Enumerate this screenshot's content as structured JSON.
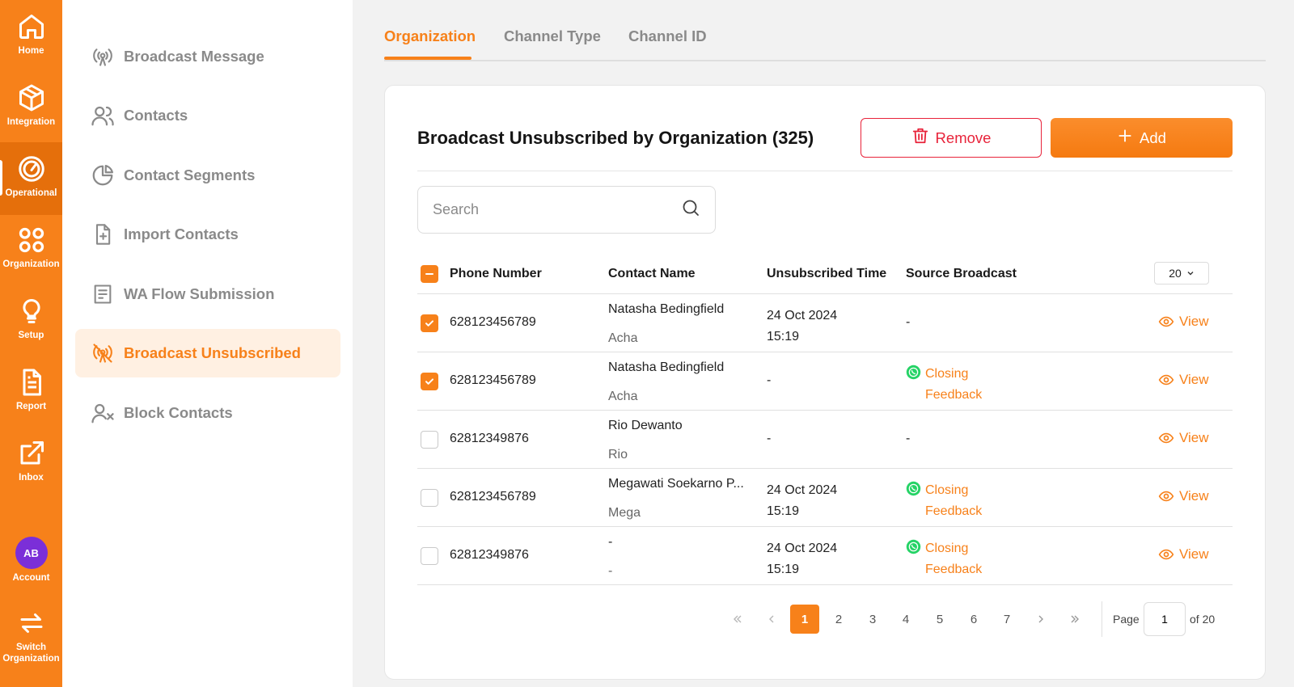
{
  "rail": {
    "items": [
      {
        "label": "Home",
        "icon": "home-icon"
      },
      {
        "label": "Integration",
        "icon": "cube-icon"
      },
      {
        "label": "Operational",
        "icon": "gauge-icon",
        "active": true
      },
      {
        "label": "Organization",
        "icon": "grid-icon"
      },
      {
        "label": "Setup",
        "icon": "bulb-icon"
      },
      {
        "label": "Report",
        "icon": "report-icon"
      },
      {
        "label": "Inbox",
        "icon": "external-link-icon"
      },
      {
        "label": "Account",
        "avatar": "AB"
      },
      {
        "label": "Switch\nOrganization",
        "icon": "switch-icon"
      }
    ]
  },
  "submenu": {
    "items": [
      {
        "label": "Broadcast Message",
        "icon": "broadcast-icon"
      },
      {
        "label": "Contacts",
        "icon": "contacts-icon"
      },
      {
        "label": "Contact Segments",
        "icon": "pie-icon"
      },
      {
        "label": "Import Contacts",
        "icon": "file-plus-icon"
      },
      {
        "label": "WA Flow Submission",
        "icon": "form-icon"
      },
      {
        "label": "Broadcast Unsubscribed",
        "icon": "broadcast-off-icon",
        "active": true
      },
      {
        "label": "Block Contacts",
        "icon": "user-block-icon"
      }
    ]
  },
  "tabs": [
    {
      "label": "Organization",
      "active": true
    },
    {
      "label": "Channel Type"
    },
    {
      "label": "Channel ID"
    }
  ],
  "card": {
    "title": "Broadcast Unsubscribed by Organization (325)",
    "remove_label": "Remove",
    "add_label": "Add",
    "search_placeholder": "Search"
  },
  "table": {
    "columns": [
      "Phone Number",
      "Contact Name",
      "Unsubscribed Time",
      "Source Broadcast"
    ],
    "page_size": "20",
    "view_label": "View",
    "rows": [
      {
        "checked": true,
        "phone": "628123456789",
        "name": "Natasha Bedingfield",
        "nick": "Acha",
        "date": "24 Oct 2024",
        "time": "15:19",
        "source": "-",
        "source_wa": false
      },
      {
        "checked": true,
        "phone": "628123456789",
        "name": "Natasha Bedingfield",
        "nick": "Acha",
        "date": "-",
        "time": "",
        "source_line1": "Closing",
        "source_line2": "Feedback",
        "source_wa": true
      },
      {
        "checked": false,
        "phone": "62812349876",
        "name": "Rio Dewanto",
        "nick": "Rio",
        "date": "-",
        "time": "",
        "source": "-",
        "source_wa": false
      },
      {
        "checked": false,
        "phone": "628123456789",
        "name": "Megawati Soekarno P...",
        "nick": "Mega",
        "date": "24 Oct 2024",
        "time": "15:19",
        "source_line1": "Closing",
        "source_line2": "Feedback",
        "source_wa": true
      },
      {
        "checked": false,
        "phone": "62812349876",
        "name": "-",
        "nick": "-",
        "date": "24 Oct 2024",
        "time": "15:19",
        "source_line1": "Closing",
        "source_line2": "Feedback",
        "source_wa": true
      }
    ]
  },
  "pagination": {
    "pages": [
      "1",
      "2",
      "3",
      "4",
      "5",
      "6",
      "7"
    ],
    "current": "1",
    "page_label": "Page",
    "page_input": "1",
    "of_label": "of 20"
  },
  "colors": {
    "accent": "#f7811a",
    "danger": "#e8233a",
    "whatsapp": "#25d366"
  }
}
